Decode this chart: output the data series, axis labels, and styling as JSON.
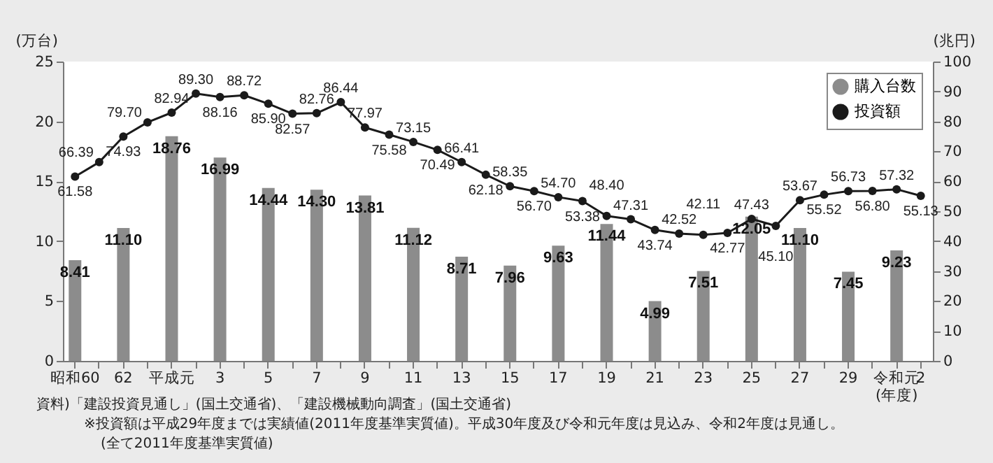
{
  "chart_data": {
    "type": "bar",
    "ylabel": "(万台)",
    "y2label": "(兆円)",
    "categories": [
      "昭和60",
      null,
      "62",
      null,
      "平成元",
      null,
      "3",
      null,
      "5",
      null,
      "7",
      null,
      "9",
      null,
      "11",
      null,
      "13",
      null,
      "15",
      null,
      "17",
      null,
      "19",
      null,
      "21",
      null,
      "23",
      null,
      "25",
      null,
      "27",
      null,
      "29",
      null,
      "令和元\n(年度)",
      "2"
    ],
    "series": [
      {
        "name": "購入台数",
        "color": "#8c8c8c",
        "values": [
          8.41,
          null,
          11.1,
          null,
          18.76,
          null,
          16.99,
          null,
          14.44,
          null,
          14.3,
          null,
          13.81,
          null,
          11.12,
          null,
          8.71,
          null,
          7.96,
          null,
          9.63,
          null,
          11.44,
          null,
          4.99,
          null,
          7.51,
          null,
          12.05,
          null,
          11.1,
          null,
          7.45,
          null,
          9.23,
          null
        ],
        "value_labels": [
          "8.41",
          null,
          "11.10",
          null,
          "18.76",
          null,
          "16.99",
          null,
          "14.44",
          null,
          "14.30",
          null,
          "13.81",
          null,
          "11.12",
          null,
          "8.71",
          null,
          "7.96",
          null,
          "9.63",
          null,
          "11.44",
          null,
          "4.99",
          null,
          "7.51",
          null,
          "12.05",
          null,
          "11.10",
          null,
          "7.45",
          null,
          "9.23",
          null
        ]
      },
      {
        "name": "投資額",
        "type": "line",
        "axis": "y2",
        "color": "#1a1a1a",
        "values": [
          61.58,
          66.39,
          74.93,
          79.7,
          82.94,
          89.3,
          88.16,
          88.72,
          85.9,
          82.57,
          82.76,
          86.44,
          77.97,
          75.58,
          73.15,
          70.49,
          66.41,
          62.18,
          58.35,
          56.7,
          54.7,
          53.38,
          48.4,
          47.31,
          43.74,
          42.52,
          42.11,
          42.77,
          47.43,
          45.1,
          53.67,
          55.52,
          56.73,
          56.8,
          57.32,
          55.13
        ],
        "value_labels": [
          "61.58",
          "66.39",
          "74.93",
          "79.70",
          "82.94",
          "89.30",
          "88.16",
          "88.72",
          "85.90",
          "82.57",
          "82.76",
          "86.44",
          "77.97",
          "75.58",
          "73.15",
          "70.49",
          "66.41",
          "62.18",
          "58.35",
          "56.70",
          "54.70",
          "53.38",
          "48.40",
          "47.31",
          "43.74",
          "42.52",
          "42.11",
          "42.77",
          "47.43",
          "45.10",
          "53.67",
          "55.52",
          "56.73",
          "56.80",
          "57.32",
          "55.13"
        ]
      }
    ],
    "ylim": [
      0,
      25
    ],
    "yticks": [
      0,
      5,
      10,
      15,
      20,
      25
    ],
    "y2lim": [
      0,
      100
    ],
    "y2ticks": [
      0,
      10,
      20,
      30,
      40,
      50,
      60,
      70,
      80,
      90,
      100
    ],
    "marker": "circle",
    "legend": "top right",
    "annotations": [
      "資料)「建設投資見通し」(国土交通省)、「建設機械動向調査」(国土交通省)",
      "※投資額は平成29年度までは実績値(2011年度基準実質値)。平成30年度及び令和元年度は見込み、令和2年度は見通し。",
      "(全て2011年度基準実質値)"
    ]
  }
}
